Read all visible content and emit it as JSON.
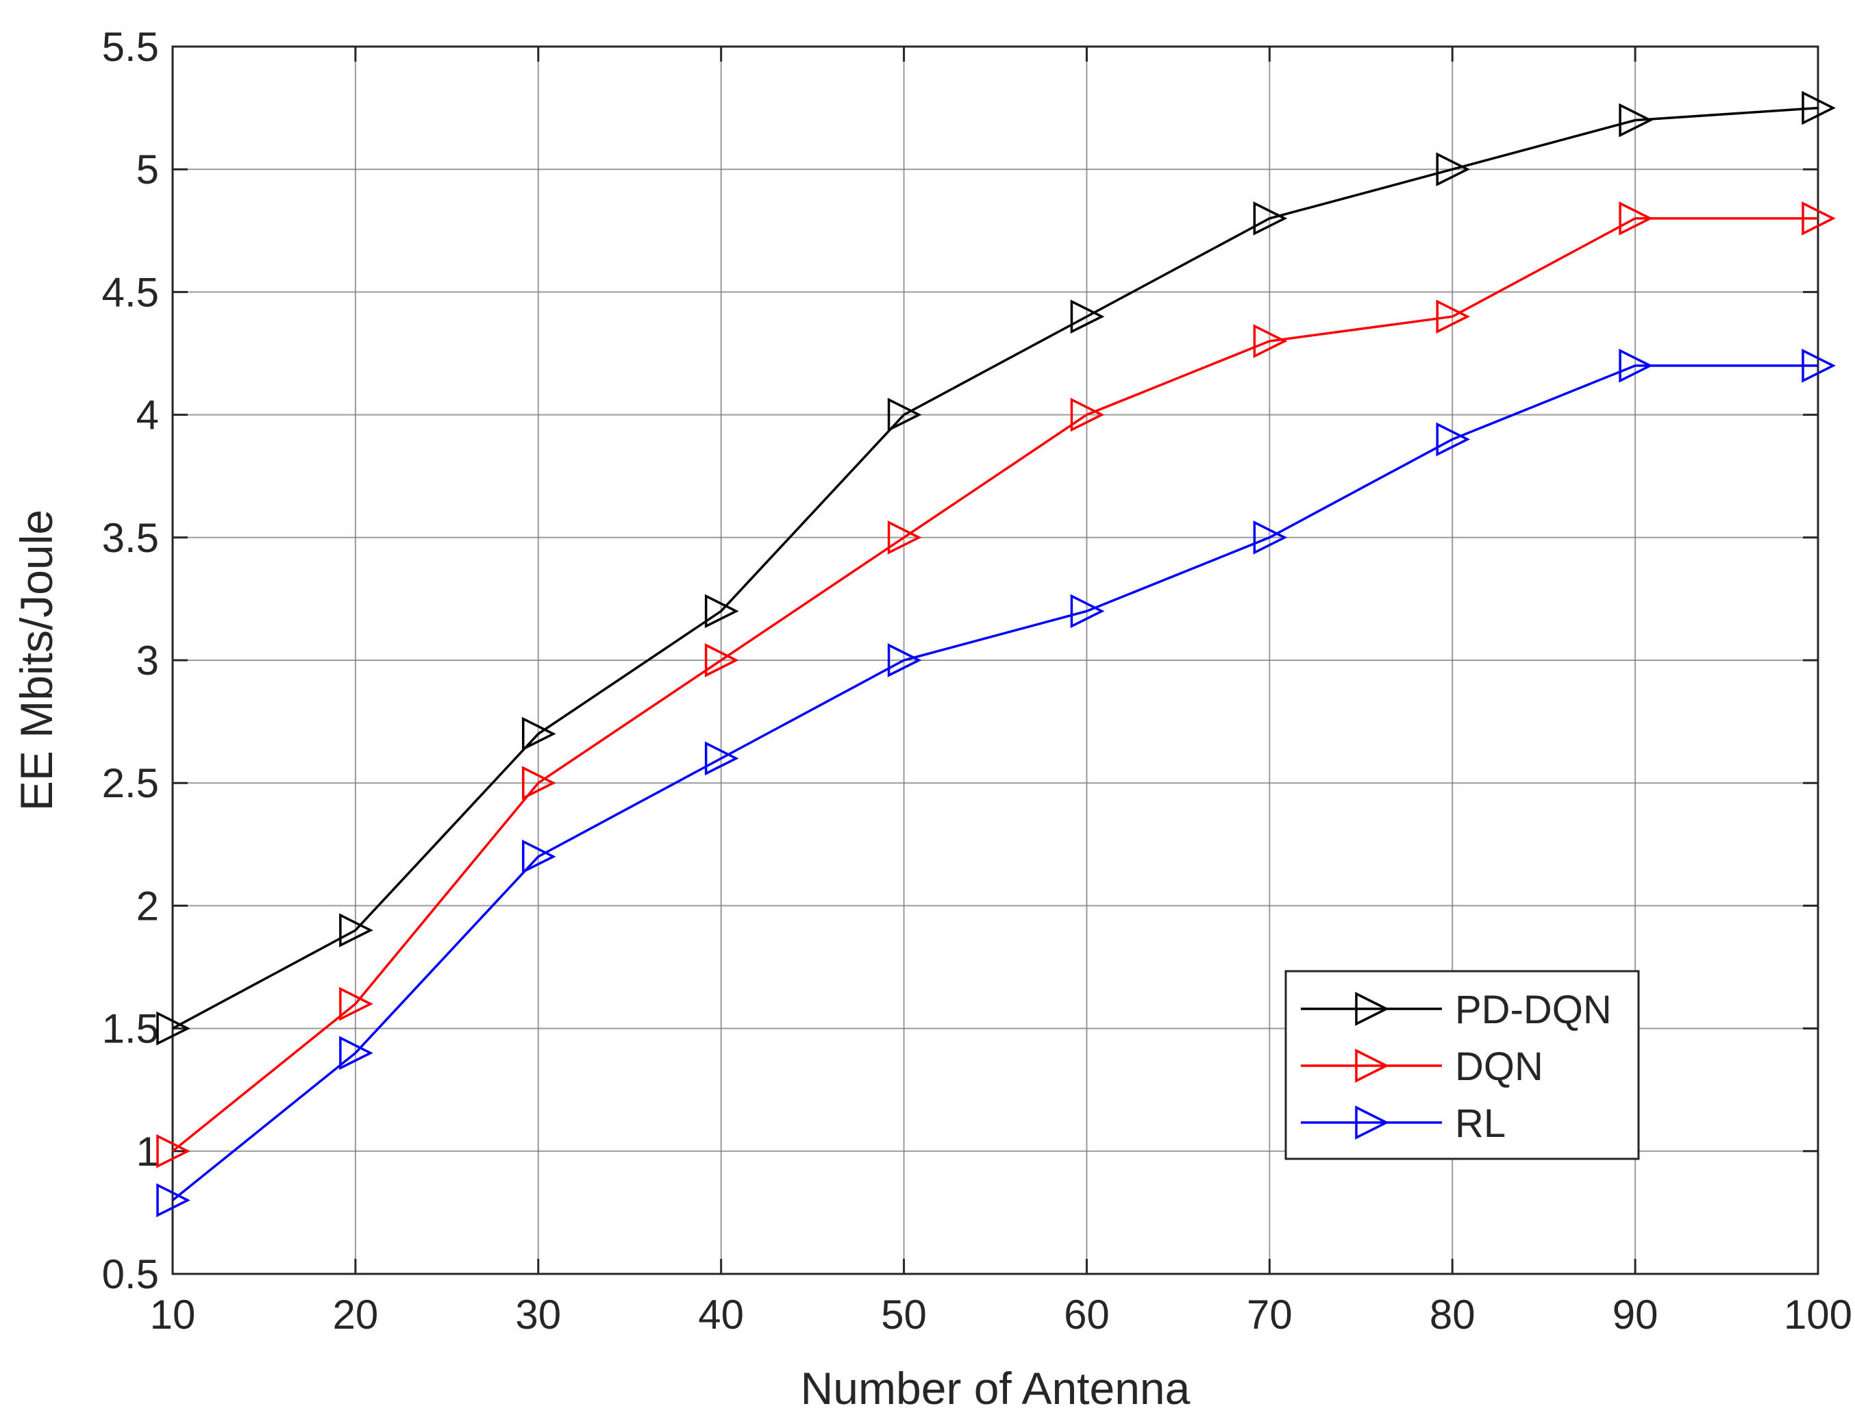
{
  "chart_data": {
    "type": "line",
    "title": "",
    "xlabel": "Number of Antenna",
    "ylabel": "EE Mbits/Joule",
    "xlim": [
      10,
      100
    ],
    "ylim": [
      0.5,
      5.5
    ],
    "xticks": [
      10,
      20,
      30,
      40,
      50,
      60,
      70,
      80,
      90,
      100
    ],
    "yticks": [
      0.5,
      1,
      1.5,
      2,
      2.5,
      3,
      3.5,
      4,
      4.5,
      5,
      5.5
    ],
    "xtick_labels": [
      "10",
      "20",
      "30",
      "40",
      "50",
      "60",
      "70",
      "80",
      "90",
      "100"
    ],
    "ytick_labels": [
      "0.5",
      "1",
      "1.5",
      "2",
      "2.5",
      "3",
      "3.5",
      "4",
      "4.5",
      "5",
      "5.5"
    ],
    "grid": true,
    "legend_position": "bottom-right",
    "marker": "triangle-right",
    "x": [
      10,
      20,
      30,
      40,
      50,
      60,
      70,
      80,
      90,
      100
    ],
    "series": [
      {
        "name": "PD-DQN",
        "color": "#000000",
        "values": [
          1.5,
          1.9,
          2.7,
          3.2,
          4.0,
          4.4,
          4.8,
          5.0,
          5.2,
          5.25
        ]
      },
      {
        "name": "DQN",
        "color": "#ff0000",
        "values": [
          1.0,
          1.6,
          2.5,
          3.0,
          3.5,
          4.0,
          4.3,
          4.4,
          4.8,
          4.8
        ]
      },
      {
        "name": "RL",
        "color": "#0000ff",
        "values": [
          0.8,
          1.4,
          2.2,
          2.6,
          3.0,
          3.2,
          3.5,
          3.9,
          4.2,
          4.2
        ]
      }
    ]
  }
}
